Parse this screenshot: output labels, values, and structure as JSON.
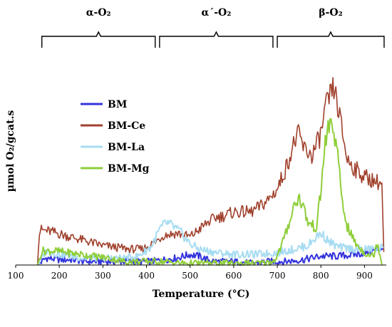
{
  "chart_data": {
    "type": "line",
    "xlabel": "Temperature (°C)",
    "ylabel": "µmol O₂/gcat.s",
    "xlim": [
      100,
      950
    ],
    "xticks": [
      100,
      200,
      300,
      400,
      500,
      600,
      700,
      800,
      900
    ],
    "ylim": [
      0,
      1
    ],
    "regions": [
      {
        "label": "α-O₂",
        "from": 160,
        "to": 420
      },
      {
        "label": "α´-O₂",
        "from": 430,
        "to": 690
      },
      {
        "label": "β-O₂",
        "from": 700,
        "to": 945
      }
    ],
    "legend_position": "upper-left",
    "series": [
      {
        "name": "BM",
        "color": "#3333dd",
        "x": [
          150,
          170,
          200,
          230,
          260,
          290,
          320,
          350,
          380,
          410,
          440,
          470,
          500,
          520,
          540,
          560,
          600,
          640,
          680,
          720,
          760,
          800,
          840,
          880,
          920,
          945
        ],
        "y": [
          0.0,
          0.04,
          0.03,
          0.03,
          0.02,
          0.02,
          0.02,
          0.02,
          0.02,
          0.02,
          0.03,
          0.04,
          0.06,
          0.05,
          0.03,
          0.02,
          0.02,
          0.01,
          0.02,
          0.02,
          0.03,
          0.05,
          0.05,
          0.06,
          0.08,
          0.1
        ]
      },
      {
        "name": "BM-Ce",
        "color": "#a0402c",
        "x": [
          150,
          155,
          180,
          210,
          240,
          270,
          300,
          330,
          360,
          390,
          420,
          440,
          470,
          500,
          520,
          540,
          560,
          580,
          600,
          620,
          640,
          660,
          680,
          700,
          720,
          740,
          750,
          760,
          780,
          800,
          810,
          820,
          830,
          840,
          860,
          880,
          900,
          920,
          940,
          945
        ],
        "y": [
          0.0,
          0.2,
          0.19,
          0.17,
          0.15,
          0.13,
          0.11,
          0.1,
          0.09,
          0.09,
          0.13,
          0.17,
          0.18,
          0.16,
          0.2,
          0.24,
          0.27,
          0.28,
          0.3,
          0.3,
          0.3,
          0.33,
          0.37,
          0.43,
          0.55,
          0.7,
          0.74,
          0.66,
          0.62,
          0.74,
          0.88,
          0.95,
          1.0,
          0.88,
          0.6,
          0.54,
          0.5,
          0.48,
          0.46,
          0.0
        ]
      },
      {
        "name": "BM-La",
        "color": "#a6dcf2",
        "x": [
          150,
          170,
          200,
          250,
          300,
          350,
          380,
          410,
          430,
          445,
          460,
          480,
          500,
          520,
          540,
          560,
          600,
          650,
          700,
          740,
          770,
          790,
          800,
          820,
          840,
          880,
          920,
          945
        ],
        "y": [
          0.0,
          0.08,
          0.06,
          0.04,
          0.04,
          0.04,
          0.05,
          0.1,
          0.2,
          0.24,
          0.22,
          0.18,
          0.12,
          0.09,
          0.08,
          0.07,
          0.06,
          0.06,
          0.07,
          0.09,
          0.11,
          0.16,
          0.18,
          0.13,
          0.1,
          0.09,
          0.09,
          0.1
        ]
      },
      {
        "name": "BM-Mg",
        "color": "#8fce3a",
        "x": [
          150,
          160,
          190,
          220,
          250,
          280,
          310,
          330,
          350,
          380,
          410,
          440,
          480,
          520,
          560,
          600,
          640,
          670,
          690,
          700,
          720,
          740,
          750,
          760,
          770,
          790,
          800,
          810,
          820,
          830,
          840,
          850,
          860,
          880,
          900,
          920,
          930,
          940
        ],
        "y": [
          0.0,
          0.08,
          0.08,
          0.07,
          0.06,
          0.05,
          0.04,
          0.03,
          0.02,
          0.02,
          0.02,
          0.02,
          0.01,
          0.01,
          0.01,
          0.01,
          0.01,
          0.01,
          0.02,
          0.05,
          0.18,
          0.35,
          0.38,
          0.33,
          0.24,
          0.21,
          0.42,
          0.7,
          0.8,
          0.76,
          0.58,
          0.34,
          0.22,
          0.12,
          0.07,
          0.05,
          0.13,
          0.0
        ]
      }
    ]
  }
}
